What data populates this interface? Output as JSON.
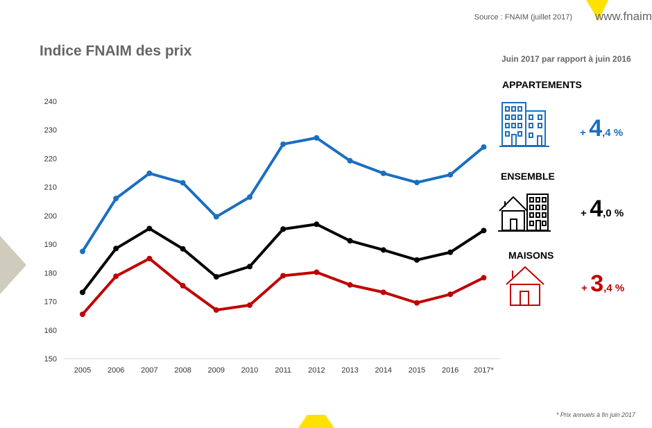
{
  "header": {
    "source": "Source : FNAIM (juillet 2017)",
    "website": "www.fnaim"
  },
  "title": "Indice FNAIM des prix",
  "footnote": "* Prix  annuels à  fin juin 2017",
  "summary": {
    "subtitle": "Juin 2017 par rapport à juin 2016",
    "items": [
      {
        "label": "APPARTEMENTS",
        "sign": "+",
        "int": "4",
        "dec": ",4 %",
        "color": "#1a6fc0",
        "icon": "apartment-building-icon"
      },
      {
        "label": "ENSEMBLE",
        "sign": "+",
        "int": "4",
        "dec": ",0 %",
        "color": "#000000",
        "icon": "house-and-building-icon"
      },
      {
        "label": "MAISONS",
        "sign": "+",
        "int": "3",
        "dec": ",4 %",
        "color": "#c00000",
        "icon": "house-icon"
      }
    ]
  },
  "chart_data": {
    "type": "line",
    "title": "Indice FNAIM des prix",
    "categories": [
      "2005",
      "2006",
      "2007",
      "2008",
      "2009",
      "2010",
      "2011",
      "2012",
      "2013",
      "2014",
      "2015",
      "2016",
      "2017*"
    ],
    "ylim": [
      150,
      240
    ],
    "yticks": [
      150,
      160,
      170,
      180,
      190,
      200,
      210,
      220,
      230,
      240
    ],
    "grid": false,
    "series": [
      {
        "color": "#1a6fc0",
        "values": [
          187.5,
          206,
          214.8,
          211.5,
          199.6,
          206.5,
          225,
          227.2,
          219.2,
          214.8,
          211.6,
          214.3,
          224
        ]
      },
      {
        "color": "#000000",
        "values": [
          173.2,
          188.5,
          195.5,
          188.4,
          178.6,
          182.2,
          195.3,
          197,
          191.2,
          188,
          184.5,
          187.2,
          194.8
        ]
      },
      {
        "color": "#c00000",
        "values": [
          165.5,
          178.8,
          185,
          175.5,
          167,
          168.7,
          179,
          180.2,
          175.8,
          173.2,
          169.5,
          172.5,
          178.3
        ]
      }
    ]
  }
}
